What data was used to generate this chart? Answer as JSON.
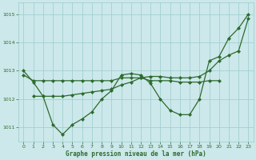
{
  "xlabel": "Graphe pression niveau de la mer (hPa)",
  "xlim": [
    -0.5,
    23.5
  ],
  "ylim": [
    1010.5,
    1015.4
  ],
  "yticks": [
    1011,
    1012,
    1013,
    1014,
    1015
  ],
  "xticks": [
    0,
    1,
    2,
    3,
    4,
    5,
    6,
    7,
    8,
    9,
    10,
    11,
    12,
    13,
    14,
    15,
    16,
    17,
    18,
    19,
    20,
    21,
    22,
    23
  ],
  "bg_color": "#cce8ea",
  "grid_color": "#99cccc",
  "line_color": "#2d6a2d",
  "series1": {
    "x": [
      0,
      1,
      2,
      3,
      4,
      5,
      6,
      7,
      8,
      9,
      10,
      11,
      12,
      13,
      14,
      15,
      16,
      17,
      18,
      19,
      20
    ],
    "y": [
      1012.85,
      1012.65,
      1012.65,
      1012.65,
      1012.65,
      1012.65,
      1012.65,
      1012.65,
      1012.65,
      1012.65,
      1012.75,
      1012.75,
      1012.75,
      1012.65,
      1012.65,
      1012.65,
      1012.6,
      1012.6,
      1012.6,
      1012.65,
      1012.65
    ]
  },
  "series2": {
    "x": [
      0,
      1,
      2,
      3,
      4,
      5,
      6,
      7,
      8,
      9,
      10,
      11,
      12,
      13,
      14,
      15,
      16,
      17,
      18,
      19,
      20,
      21,
      22,
      23
    ],
    "y": [
      1013.0,
      1012.6,
      1012.1,
      1011.1,
      1010.75,
      1011.1,
      1011.3,
      1011.55,
      1012.0,
      1012.3,
      1012.85,
      1012.9,
      1012.85,
      1012.55,
      1012.0,
      1011.6,
      1011.45,
      1011.45,
      1012.0,
      1013.35,
      1013.5,
      1014.15,
      1014.5,
      1015.0
    ]
  },
  "series3": {
    "x": [
      1,
      2,
      3,
      4,
      5,
      6,
      7,
      8,
      9,
      10,
      11,
      12,
      13,
      14,
      15,
      16,
      17,
      18,
      19,
      20,
      21,
      22,
      23
    ],
    "y": [
      1012.1,
      1012.1,
      1012.1,
      1012.1,
      1012.15,
      1012.2,
      1012.25,
      1012.3,
      1012.35,
      1012.5,
      1012.6,
      1012.75,
      1012.8,
      1012.8,
      1012.75,
      1012.75,
      1012.75,
      1012.8,
      1013.0,
      1013.35,
      1013.55,
      1013.7,
      1014.85
    ]
  }
}
